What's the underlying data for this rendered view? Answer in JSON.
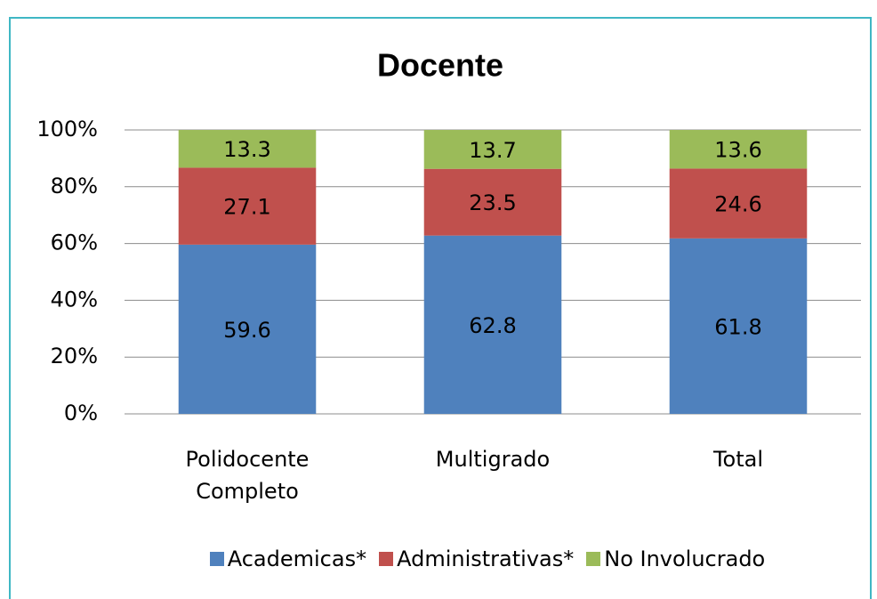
{
  "chart_data": {
    "type": "stacked-bar",
    "title": "Docente",
    "categories": [
      "Polidocente Completo",
      "Multigrado",
      "Total"
    ],
    "series": [
      {
        "name": "Academicas*",
        "color": "#4f81bd",
        "values": [
          59.6,
          62.8,
          61.8
        ]
      },
      {
        "name": "Administrativas*",
        "color": "#c0504d",
        "values": [
          27.1,
          23.5,
          24.6
        ]
      },
      {
        "name": "No Involucrado",
        "color": "#9bbb59",
        "values": [
          13.3,
          13.7,
          13.6
        ]
      }
    ],
    "ylim": [
      0,
      100
    ],
    "yticks": [
      {
        "value": 0,
        "label": "0%"
      },
      {
        "value": 20,
        "label": "20%"
      },
      {
        "value": 40,
        "label": "40%"
      },
      {
        "value": 60,
        "label": "60%"
      },
      {
        "value": 80,
        "label": "80%"
      },
      {
        "value": 100,
        "label": "100%"
      }
    ],
    "grid": true,
    "legend": "bottom"
  }
}
